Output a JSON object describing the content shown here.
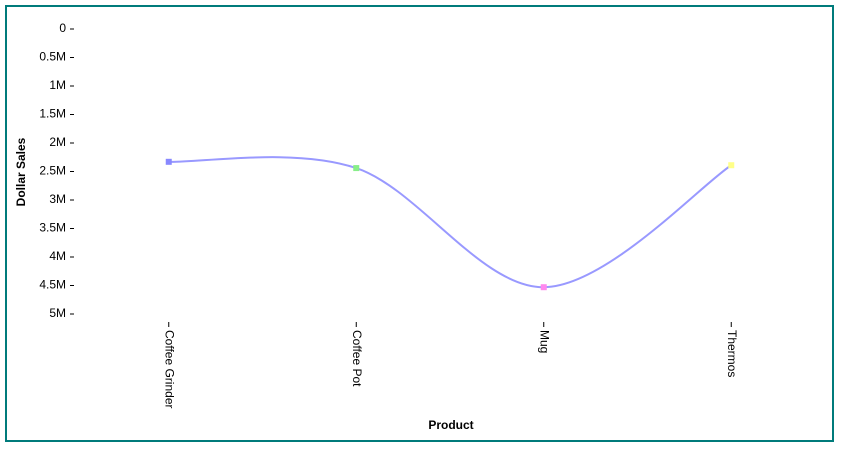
{
  "chart_data": {
    "type": "line",
    "x_label": "Product",
    "y_label": "Dollar Sales",
    "categories": [
      "Coffee Grinder",
      "Coffee Pot",
      "Mug",
      "Thermos"
    ],
    "series": [
      {
        "name": "Dollar Sales",
        "color": "#9999ff",
        "point_colors": [
          "#8888ff",
          "#88ee88",
          "#ff88ee",
          "#ffff88"
        ],
        "values": [
          2330000,
          2440000,
          4530000,
          2390000
        ]
      }
    ],
    "ylim": [
      0,
      5000000
    ],
    "y_reversed": true,
    "smooth": true,
    "yticks": [
      {
        "value": 0,
        "label": "0"
      },
      {
        "value": 500000,
        "label": "0.5M"
      },
      {
        "value": 1000000,
        "label": "1M"
      },
      {
        "value": 1500000,
        "label": "1.5M"
      },
      {
        "value": 2000000,
        "label": "2M"
      },
      {
        "value": 2500000,
        "label": "2.5M"
      },
      {
        "value": 3000000,
        "label": "3M"
      },
      {
        "value": 3500000,
        "label": "3.5M"
      },
      {
        "value": 4000000,
        "label": "4M"
      },
      {
        "value": 4500000,
        "label": "4.5M"
      },
      {
        "value": 5000000,
        "label": "5M"
      }
    ]
  }
}
